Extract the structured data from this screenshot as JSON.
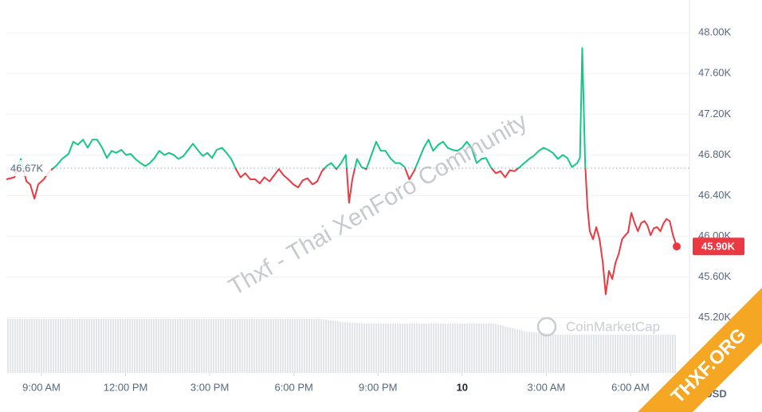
{
  "chart_data": {
    "type": "line",
    "currency": "USD",
    "up_color": "#16c784",
    "down_color": "#ea3943",
    "grid": true,
    "xlim": [
      465,
      1899
    ],
    "ylim": [
      44680,
      48260
    ],
    "yticks": [
      {
        "value": 45200,
        "label": "45.20K"
      },
      {
        "value": 45600,
        "label": "45.60K"
      },
      {
        "value": 46000,
        "label": "46.00K"
      },
      {
        "value": 46400,
        "label": "46.40K"
      },
      {
        "value": 46800,
        "label": "46.80K"
      },
      {
        "value": 47200,
        "label": "47.20K"
      },
      {
        "value": 47600,
        "label": "47.60K"
      },
      {
        "value": 48000,
        "label": "48.00K"
      }
    ],
    "xticks": [
      {
        "value": 540,
        "label": "9:00 AM"
      },
      {
        "value": 720,
        "label": "12:00 PM"
      },
      {
        "value": 900,
        "label": "3:00 PM"
      },
      {
        "value": 1080,
        "label": "6:00 PM"
      },
      {
        "value": 1260,
        "label": "9:00 PM"
      },
      {
        "value": 1440,
        "label": "10"
      },
      {
        "value": 1620,
        "label": "3:00 AM"
      },
      {
        "value": 1800,
        "label": "6:00 AM"
      }
    ],
    "reference_line": {
      "value": 46670,
      "label": "46.67K"
    },
    "last_price": {
      "value": 45900,
      "label": "45.90K"
    },
    "watermarks": [
      "Thxf - Thai XenForo Community",
      "CoinMarketCap",
      "THXF.ORG"
    ],
    "x": [
      465,
      482,
      496,
      508,
      516,
      525,
      533,
      545,
      557,
      571,
      584,
      598,
      608,
      618,
      629,
      639,
      649,
      659,
      670,
      680,
      690,
      700,
      711,
      721,
      731,
      741,
      752,
      762,
      772,
      782,
      792,
      803,
      813,
      823,
      833,
      844,
      854,
      864,
      874,
      885,
      895,
      905,
      915,
      926,
      936,
      946,
      956,
      966,
      976,
      987,
      997,
      1007,
      1017,
      1028,
      1038,
      1048,
      1058,
      1068,
      1079,
      1089,
      1099,
      1109,
      1120,
      1130,
      1140,
      1150,
      1160,
      1171,
      1181,
      1191,
      1198,
      1205,
      1215,
      1225,
      1235,
      1246,
      1256,
      1266,
      1276,
      1286,
      1297,
      1307,
      1317,
      1327,
      1337,
      1348,
      1358,
      1368,
      1378,
      1389,
      1399,
      1409,
      1419,
      1430,
      1440,
      1450,
      1460,
      1471,
      1481,
      1491,
      1501,
      1512,
      1522,
      1532,
      1542,
      1552,
      1563,
      1573,
      1583,
      1593,
      1604,
      1614,
      1624,
      1634,
      1645,
      1655,
      1665,
      1675,
      1686,
      1692,
      1697,
      1703,
      1708,
      1713,
      1720,
      1727,
      1734,
      1741,
      1747,
      1754,
      1761,
      1768,
      1775,
      1782,
      1789,
      1795,
      1802,
      1809,
      1816,
      1823,
      1830,
      1836,
      1843,
      1850,
      1857,
      1864,
      1871,
      1877,
      1884,
      1891,
      1899
    ],
    "values": [
      46560,
      46580,
      46760,
      46540,
      46510,
      46370,
      46510,
      46560,
      46640,
      46690,
      46760,
      46810,
      46930,
      46900,
      46950,
      46870,
      46950,
      46950,
      46870,
      46770,
      46840,
      46820,
      46850,
      46800,
      46810,
      46760,
      46720,
      46690,
      46720,
      46770,
      46840,
      46800,
      46820,
      46800,
      46760,
      46790,
      46850,
      46910,
      46850,
      46790,
      46820,
      46770,
      46850,
      46870,
      46820,
      46760,
      46660,
      46580,
      46620,
      46560,
      46560,
      46520,
      46580,
      46540,
      46600,
      46660,
      46600,
      46560,
      46510,
      46480,
      46550,
      46570,
      46510,
      46540,
      46640,
      46690,
      46720,
      46660,
      46720,
      46800,
      46330,
      46560,
      46760,
      46680,
      46660,
      46800,
      46930,
      46840,
      46840,
      46770,
      46720,
      46720,
      46680,
      46560,
      46640,
      46760,
      46870,
      46950,
      46840,
      46900,
      46930,
      46870,
      46850,
      46840,
      46870,
      46930,
      46870,
      46720,
      46760,
      46770,
      46680,
      46620,
      46640,
      46580,
      46650,
      46640,
      46680,
      46720,
      46760,
      46790,
      46840,
      46870,
      46850,
      46820,
      46760,
      46800,
      46770,
      46680,
      46720,
      46770,
      47850,
      46720,
      46290,
      46050,
      45970,
      46090,
      45970,
      45740,
      45430,
      45660,
      45580,
      45740,
      45830,
      45970,
      46010,
      46040,
      46230,
      46130,
      46050,
      46130,
      46150,
      46110,
      46010,
      46080,
      46090,
      46050,
      46130,
      46170,
      46150,
      46010,
      45900
    ]
  }
}
